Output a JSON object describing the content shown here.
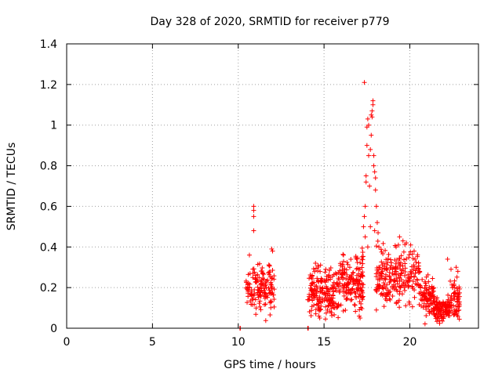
{
  "colors": {
    "marker": "#ff0000",
    "axis": "#000000",
    "grid": "#a0a0a0"
  },
  "chart_data": {
    "type": "scatter",
    "title": "Day 328 of 2020, SRMTID for receiver p779",
    "xlabel": "GPS time / hours",
    "ylabel": "SRMTID / TECUs",
    "xlim": [
      0,
      24
    ],
    "ylim": [
      0,
      1.4
    ],
    "grid": true,
    "xticks": [
      0,
      5,
      10,
      15,
      20
    ],
    "yticks": [
      0,
      0.2,
      0.4,
      0.6,
      0.8,
      1,
      1.2,
      1.4
    ],
    "xtick_labels": [
      "0",
      "5",
      "10",
      "15",
      "20"
    ],
    "ytick_labels": [
      "0",
      "0.2",
      "0.4",
      "0.6",
      "0.8",
      "1",
      "1.2",
      "1.4"
    ],
    "marker": "+",
    "series": [
      {
        "name": "p779",
        "points": [
          [
            10.1,
            0.0
          ],
          [
            10.12,
            0.0
          ],
          [
            14.05,
            0.0
          ],
          [
            14.08,
            0.0
          ],
          [
            10.9,
            0.6
          ],
          [
            10.9,
            0.58
          ],
          [
            10.9,
            0.55
          ],
          [
            10.9,
            0.48
          ],
          [
            10.65,
            0.36
          ],
          [
            11.95,
            0.39
          ],
          [
            12.0,
            0.38
          ],
          [
            14.5,
            0.32
          ],
          [
            14.7,
            0.06
          ],
          [
            14.75,
            0.05
          ],
          [
            16.5,
            0.3
          ],
          [
            16.8,
            0.22
          ],
          [
            17.05,
            0.06
          ],
          [
            17.1,
            0.05
          ],
          [
            17.15,
            0.12
          ],
          [
            17.35,
            1.21
          ],
          [
            17.3,
            0.5
          ],
          [
            17.35,
            0.55
          ],
          [
            17.4,
            0.6
          ],
          [
            17.45,
            0.72
          ],
          [
            17.45,
            0.75
          ],
          [
            17.5,
            0.9
          ],
          [
            17.5,
            0.99
          ],
          [
            17.55,
            1.03
          ],
          [
            17.6,
            1.0
          ],
          [
            17.6,
            0.85
          ],
          [
            17.65,
            0.7
          ],
          [
            17.7,
            0.88
          ],
          [
            17.75,
            0.95
          ],
          [
            17.75,
            1.05
          ],
          [
            17.8,
            1.07
          ],
          [
            17.85,
            1.12
          ],
          [
            17.85,
            1.1
          ],
          [
            17.8,
            1.04
          ],
          [
            17.9,
            0.85
          ],
          [
            17.9,
            0.8
          ],
          [
            17.95,
            0.77
          ],
          [
            18.0,
            0.74
          ],
          [
            18.0,
            0.68
          ],
          [
            18.05,
            0.6
          ],
          [
            18.1,
            0.52
          ],
          [
            18.15,
            0.47
          ],
          [
            18.2,
            0.4
          ],
          [
            17.4,
            0.45
          ],
          [
            17.55,
            0.4
          ],
          [
            17.7,
            0.5
          ],
          [
            17.95,
            0.48
          ],
          [
            19.4,
            0.45
          ],
          [
            19.6,
            0.43
          ],
          [
            19.8,
            0.42
          ],
          [
            20.05,
            0.41
          ],
          [
            20.25,
            0.38
          ],
          [
            19.2,
            0.4
          ],
          [
            22.2,
            0.34
          ],
          [
            22.4,
            0.29
          ],
          [
            22.7,
            0.3
          ],
          [
            22.8,
            0.28
          ],
          [
            22.5,
            0.2
          ]
        ]
      }
    ],
    "clusters": [
      {
        "x0": 10.45,
        "x1": 12.1,
        "yc": 0.2,
        "ya": 0.09,
        "n": 150
      },
      {
        "x0": 14.05,
        "x1": 15.9,
        "yc": 0.18,
        "ya": 0.09,
        "n": 190
      },
      {
        "x0": 15.9,
        "x1": 17.3,
        "yc": 0.24,
        "ya": 0.1,
        "n": 160
      },
      {
        "x0": 18.0,
        "x1": 20.6,
        "yc": 0.26,
        "ya": 0.1,
        "n": 240
      },
      {
        "x0": 20.6,
        "x1": 21.4,
        "yc": 0.15,
        "ya": 0.07,
        "n": 90
      },
      {
        "x0": 21.4,
        "x1": 22.35,
        "yc": 0.09,
        "ya": 0.04,
        "n": 120
      },
      {
        "x0": 22.35,
        "x1": 22.9,
        "yc": 0.14,
        "ya": 0.08,
        "n": 60
      }
    ]
  }
}
